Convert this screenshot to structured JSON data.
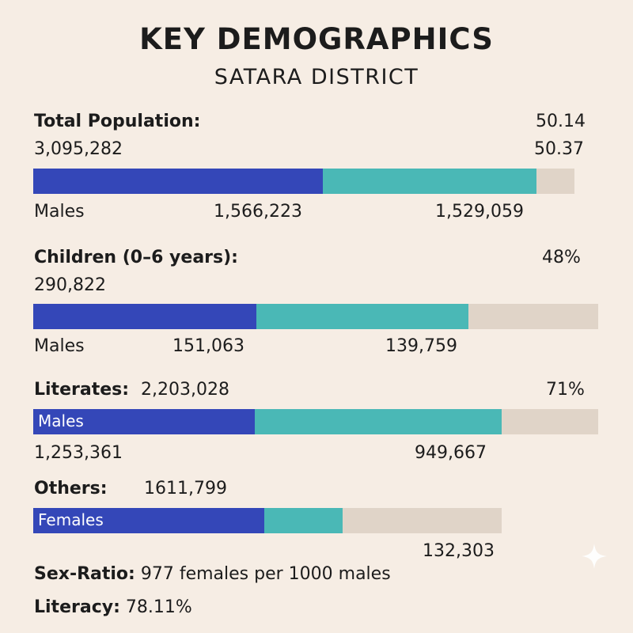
{
  "header": {
    "title": "KEY DEMOGRAPHICS",
    "subtitle": "SATARA DISTRICT"
  },
  "colors": {
    "males": "#3447b8",
    "females": "#4ab8b6",
    "rest": "#e0d4c8"
  },
  "total": {
    "label": "Total Population:",
    "value": "3,095,282",
    "right1": "50.14",
    "right2": "50.37",
    "legend": "Males",
    "males": "1,566,223",
    "females": "1,529,059"
  },
  "children": {
    "label": "Children (0–6 years):",
    "value": "290,822",
    "pct": "48%",
    "legend": "Males",
    "males": "151,063",
    "females": "139,759"
  },
  "literates": {
    "label": "Literates:",
    "value": "2,203,028",
    "pct": "71%",
    "bar_label": "Males",
    "males": "1,253,361",
    "females": "949,667"
  },
  "others": {
    "label": "Others:",
    "value": "1611,799",
    "bar_label": "Females",
    "extra": "132,303"
  },
  "footer": {
    "sex_ratio_label": "Sex-Ratio:",
    "sex_ratio_value": "977 females per 1000 males",
    "literacy_label": "Literacy:",
    "literacy_value": "78.11%"
  },
  "chart_data": {
    "type": "bar",
    "orientation": "horizontal-stacked",
    "title": "KEY DEMOGRAPHICS",
    "subtitle": "SATARA DISTRICT",
    "bars": [
      {
        "name": "Total Population",
        "segments": [
          0.513,
          0.378,
          0.067
        ]
      },
      {
        "name": "Children (0-6 years)",
        "segments": [
          0.395,
          0.375,
          0.23
        ]
      },
      {
        "name": "Literates",
        "segments": [
          0.392,
          0.437,
          0.171
        ]
      },
      {
        "name": "Others",
        "segments": [
          0.409,
          0.139,
          0.281
        ]
      }
    ],
    "segment_names": [
      "Males",
      "Females",
      "Remainder"
    ]
  }
}
